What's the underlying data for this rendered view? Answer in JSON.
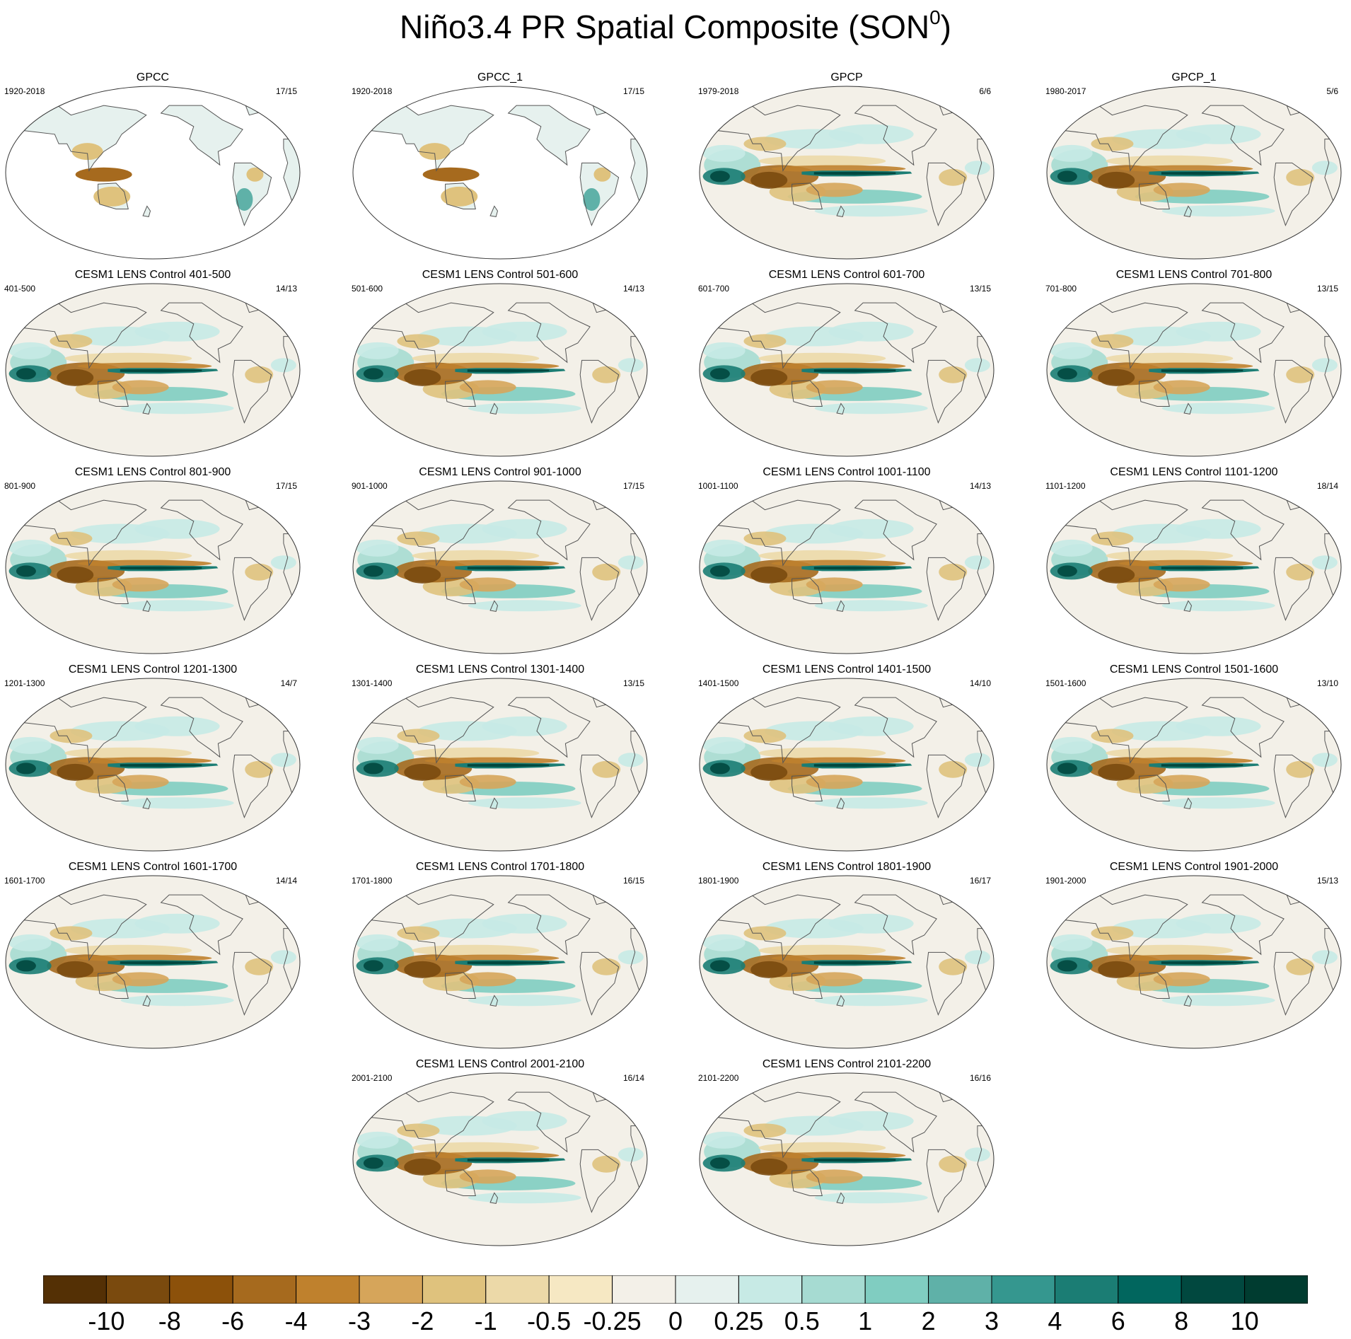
{
  "figure": {
    "title_main": "Niño3.4 PR Spatial Composite (SON",
    "title_sup": "0",
    "title_end": ")"
  },
  "chart_data": {
    "type": "heatmap",
    "projection": "Robinson-like global map, Pacific centered",
    "panels": [
      {
        "title": "GPCC",
        "years": "1920-2018",
        "count": "17/15",
        "land_only": true
      },
      {
        "title": "GPCC_1",
        "years": "1920-2018",
        "count": "17/15",
        "land_only": true
      },
      {
        "title": "GPCP",
        "years": "1979-2018",
        "count": "6/6",
        "land_only": false
      },
      {
        "title": "GPCP_1",
        "years": "1980-2017",
        "count": "5/6",
        "land_only": false
      },
      {
        "title": "CESM1 LENS Control 401-500",
        "years": "401-500",
        "count": "14/13",
        "land_only": false
      },
      {
        "title": "CESM1 LENS Control 501-600",
        "years": "501-600",
        "count": "14/13",
        "land_only": false
      },
      {
        "title": "CESM1 LENS Control 601-700",
        "years": "601-700",
        "count": "13/15",
        "land_only": false
      },
      {
        "title": "CESM1 LENS Control 701-800",
        "years": "701-800",
        "count": "13/15",
        "land_only": false
      },
      {
        "title": "CESM1 LENS Control 801-900",
        "years": "801-900",
        "count": "17/15",
        "land_only": false
      },
      {
        "title": "CESM1 LENS Control 901-1000",
        "years": "901-1000",
        "count": "17/15",
        "land_only": false
      },
      {
        "title": "CESM1 LENS Control 1001-1100",
        "years": "1001-1100",
        "count": "14/13",
        "land_only": false
      },
      {
        "title": "CESM1 LENS Control 1101-1200",
        "years": "1101-1200",
        "count": "18/14",
        "land_only": false
      },
      {
        "title": "CESM1 LENS Control 1201-1300",
        "years": "1201-1300",
        "count": "14/7",
        "land_only": false
      },
      {
        "title": "CESM1 LENS Control 1301-1400",
        "years": "1301-1400",
        "count": "13/15",
        "land_only": false
      },
      {
        "title": "CESM1 LENS Control 1401-1500",
        "years": "1401-1500",
        "count": "14/10",
        "land_only": false
      },
      {
        "title": "CESM1 LENS Control 1501-1600",
        "years": "1501-1600",
        "count": "13/10",
        "land_only": false
      },
      {
        "title": "CESM1 LENS Control 1601-1700",
        "years": "1601-1700",
        "count": "14/14",
        "land_only": false
      },
      {
        "title": "CESM1 LENS Control 1701-1800",
        "years": "1701-1800",
        "count": "16/15",
        "land_only": false
      },
      {
        "title": "CESM1 LENS Control 1801-1900",
        "years": "1801-1900",
        "count": "16/17",
        "land_only": false
      },
      {
        "title": "CESM1 LENS Control 1901-2000",
        "years": "1901-2000",
        "count": "15/13",
        "land_only": false
      },
      {
        "title": "CESM1 LENS Control 2001-2100",
        "years": "2001-2100",
        "count": "16/14",
        "land_only": false
      },
      {
        "title": "CESM1 LENS Control 2101-2200",
        "years": "2101-2200",
        "count": "16/16",
        "land_only": false
      }
    ],
    "colorbar": {
      "labels": [
        "-10",
        "-8",
        "-6",
        "-4",
        "-3",
        "-2",
        "-1",
        "-0.5",
        "-0.25",
        "0",
        "0.25",
        "0.5",
        "1",
        "2",
        "3",
        "4",
        "6",
        "8",
        "10"
      ],
      "colors": [
        "#543005",
        "#7a4a0e",
        "#8c510a",
        "#a66a1e",
        "#bf812d",
        "#d6a55a",
        "#dfc27d",
        "#ecd9a8",
        "#f6e8c3",
        "#f3f0e8",
        "#e6f1ee",
        "#c7eae5",
        "#a6dbd2",
        "#80cdc1",
        "#5fb1a8",
        "#35978f",
        "#1b7d74",
        "#01665e",
        "#01483f",
        "#003c30"
      ]
    }
  }
}
